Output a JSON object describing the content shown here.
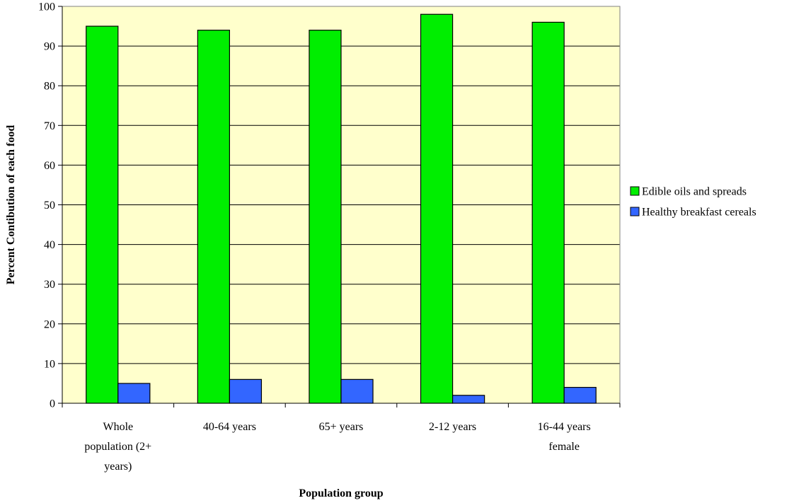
{
  "chart_data": {
    "type": "bar",
    "title": "",
    "xlabel": "Population group",
    "ylabel": "Percent Contibution of each food",
    "ylim": [
      0,
      100
    ],
    "yticks": [
      0,
      10,
      20,
      30,
      40,
      50,
      60,
      70,
      80,
      90,
      100
    ],
    "grid": true,
    "legend_position": "right",
    "plot_background": "#ffffcc",
    "categories": [
      [
        "Whole",
        "population (2+",
        "years)"
      ],
      [
        "40-64 years"
      ],
      [
        "65+ years"
      ],
      [
        "2-12 years"
      ],
      [
        "16-44 years",
        "female"
      ]
    ],
    "series": [
      {
        "name": "Edible oils and spreads",
        "color": "#00ee00",
        "values": [
          95,
          94,
          94,
          98,
          96
        ]
      },
      {
        "name": "Healthy breakfast cereals",
        "color": "#3366ff",
        "values": [
          5,
          6,
          6,
          2,
          4
        ]
      }
    ]
  }
}
